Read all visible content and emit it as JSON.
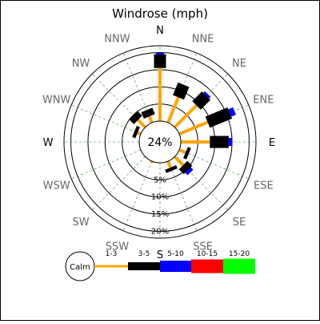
{
  "chart_data": {
    "type": "windrose",
    "title": "Windrose (mph)",
    "calm_label": "24%",
    "legend_calm": "Calm",
    "directions": [
      "N",
      "NNE",
      "NE",
      "ENE",
      "E",
      "ESE",
      "SE",
      "SSE",
      "S",
      "SSW",
      "SW",
      "WSW",
      "W",
      "WNW",
      "NW",
      "NNW"
    ],
    "radial_ticks": [
      "5%",
      "10%",
      "15%",
      "20%"
    ],
    "radial_max": 22,
    "bins": [
      {
        "label": "1-3",
        "color": "#ffa500"
      },
      {
        "label": "3-5",
        "color": "#000000"
      },
      {
        "label": "5-10",
        "color": "#0000ff"
      },
      {
        "label": "10-15",
        "color": "#ff0000"
      },
      {
        "label": "15-20",
        "color": "#00ff00"
      }
    ],
    "values": [
      [
        0,
        15.5,
        4,
        0.5,
        0,
        0
      ],
      [
        1,
        8,
        4,
        0,
        0,
        0
      ],
      [
        2,
        9,
        4,
        0.7,
        0,
        0
      ],
      [
        3,
        9,
        7,
        1.5,
        0,
        0
      ],
      [
        4,
        8.5,
        5.5,
        1,
        0,
        0
      ],
      [
        5,
        2,
        1,
        0,
        0,
        0
      ],
      [
        6,
        3.5,
        2,
        1,
        0,
        0
      ],
      [
        7,
        2,
        1,
        0,
        0,
        0
      ],
      [
        9,
        0.5,
        0,
        0,
        0,
        0
      ],
      [
        13,
        1,
        1,
        0,
        0,
        0
      ],
      [
        14,
        3,
        2,
        0,
        0,
        0
      ],
      [
        15,
        2,
        2,
        0,
        0,
        0
      ]
    ]
  }
}
